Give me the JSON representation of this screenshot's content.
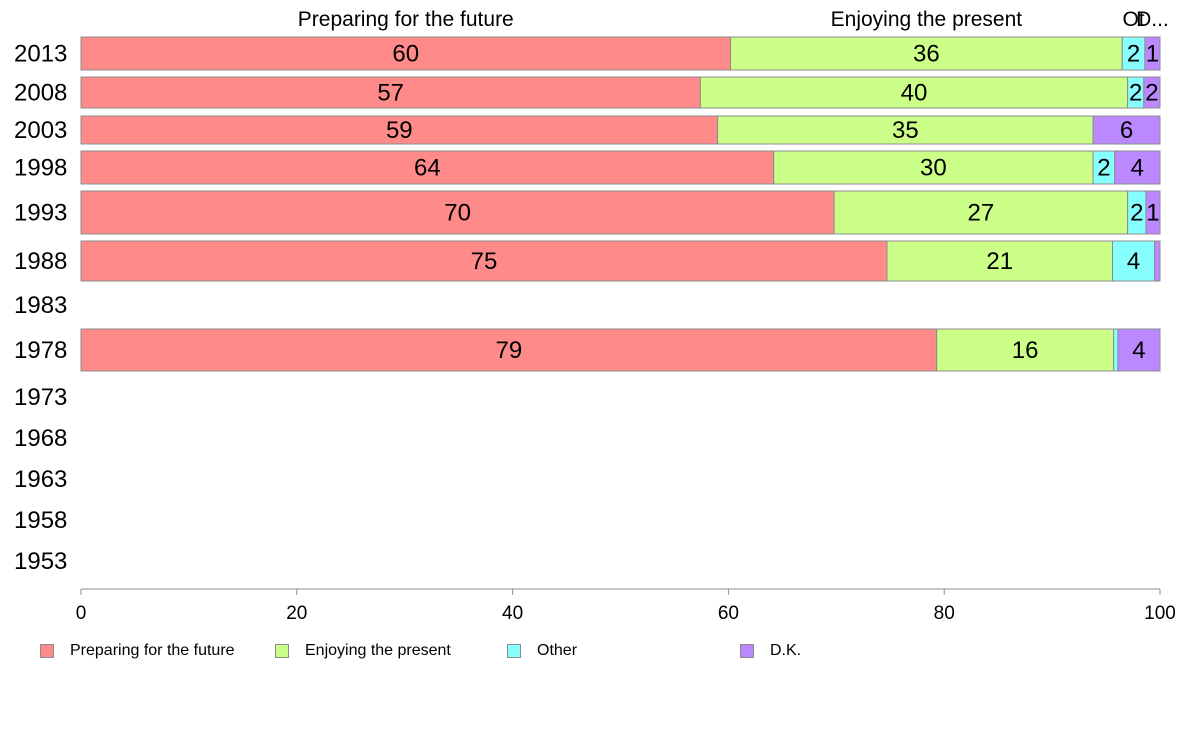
{
  "chart_data": {
    "type": "bar",
    "orientation": "horizontal",
    "stacked": true,
    "title": "",
    "xlabel": "",
    "ylabel": "",
    "xlim": [
      0,
      100
    ],
    "x_ticks": [
      0,
      20,
      40,
      60,
      80,
      100
    ],
    "grid": false,
    "legend_position": "bottom",
    "categories": [
      "2013",
      "2008",
      "2003",
      "1998",
      "1993",
      "1988",
      "1983",
      "1978",
      "1973",
      "1968",
      "1963",
      "1958",
      "1953"
    ],
    "series": [
      {
        "name": "Preparing for the future",
        "color": "#ff8a8a",
        "values": [
          60.2,
          57.4,
          59.0,
          64.2,
          69.8,
          74.7,
          null,
          79.3,
          null,
          null,
          null,
          null,
          null
        ],
        "labels": [
          "60",
          "57",
          "59",
          "64",
          "70",
          "75",
          "",
          "79",
          "",
          "",
          "",
          "",
          ""
        ]
      },
      {
        "name": "Enjoying the present",
        "color": "#ccff88",
        "values": [
          36.3,
          39.6,
          34.8,
          29.6,
          27.2,
          20.9,
          null,
          16.4,
          null,
          null,
          null,
          null,
          null
        ],
        "labels": [
          "36",
          "40",
          "35",
          "30",
          "27",
          "21",
          "",
          "16",
          "",
          "",
          "",
          "",
          ""
        ]
      },
      {
        "name": "Other",
        "color": "#88ffff",
        "values": [
          2.1,
          1.5,
          0,
          2.0,
          1.7,
          3.9,
          null,
          0.4,
          null,
          null,
          null,
          null,
          null
        ],
        "labels": [
          "2",
          "2",
          "",
          "2",
          "2",
          "4",
          "",
          "",
          "",
          "",
          "",
          "",
          ""
        ]
      },
      {
        "name": "D.K.",
        "color": "#bb88ff",
        "values": [
          1.4,
          1.5,
          6.2,
          4.2,
          1.3,
          0.5,
          null,
          3.9,
          null,
          null,
          null,
          null,
          null
        ],
        "labels": [
          "1",
          "2",
          "6",
          "4",
          "1",
          "",
          "",
          "4",
          "",
          "",
          "",
          "",
          ""
        ]
      }
    ],
    "top_labels": [
      "Preparing for the future",
      "Enjoying the present",
      "Ot",
      "D..."
    ]
  }
}
